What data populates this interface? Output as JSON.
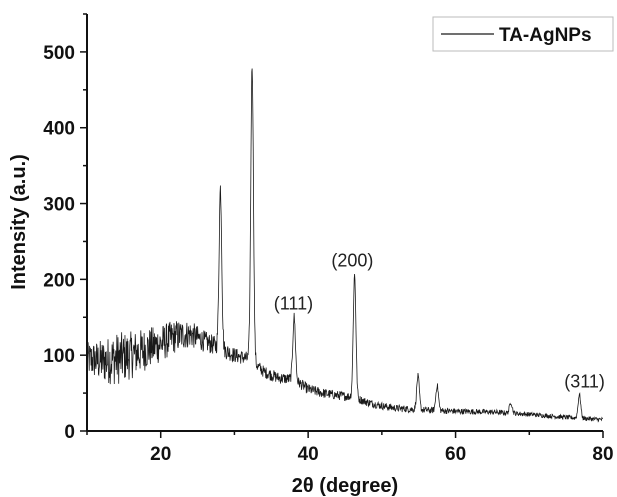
{
  "chart_data": {
    "type": "line",
    "xlabel": "2θ (degree)",
    "ylabel": "Intensity (a.u.)",
    "xlim": [
      10,
      80
    ],
    "ylim": [
      0,
      550
    ],
    "xticks": [
      20,
      40,
      60,
      80
    ],
    "yticks": [
      0,
      100,
      200,
      300,
      400,
      500
    ],
    "grid": false,
    "legend_position": "top-right",
    "series": [
      {
        "name": "TA-AgNPs",
        "color": "#1a1a1a",
        "noise_amplitude": [
          [
            10,
            22
          ],
          [
            14,
            35
          ],
          [
            18,
            28
          ],
          [
            22,
            22
          ],
          [
            26,
            14
          ],
          [
            30,
            10
          ],
          [
            34,
            8
          ],
          [
            40,
            7
          ],
          [
            45,
            6
          ],
          [
            50,
            5
          ],
          [
            60,
            4
          ],
          [
            70,
            3
          ],
          [
            80,
            3
          ]
        ],
        "baseline": [
          [
            10,
            95
          ],
          [
            12,
            92
          ],
          [
            14,
            95
          ],
          [
            16,
            100
          ],
          [
            18,
            108
          ],
          [
            20,
            115
          ],
          [
            22,
            125
          ],
          [
            24,
            128
          ],
          [
            26,
            118
          ],
          [
            28,
            110
          ],
          [
            30,
            100
          ],
          [
            32,
            95
          ],
          [
            34,
            78
          ],
          [
            36,
            70
          ],
          [
            38,
            68
          ],
          [
            39,
            62
          ],
          [
            40,
            55
          ],
          [
            42,
            50
          ],
          [
            44,
            47
          ],
          [
            46,
            45
          ],
          [
            48,
            38
          ],
          [
            50,
            33
          ],
          [
            52,
            30
          ],
          [
            55,
            28
          ],
          [
            60,
            26
          ],
          [
            65,
            25
          ],
          [
            70,
            22
          ],
          [
            75,
            18
          ],
          [
            80,
            15
          ]
        ],
        "peaks": [
          {
            "x": 28.1,
            "y": 320
          },
          {
            "x": 32.4,
            "y": 482
          },
          {
            "x": 38.1,
            "y": 150
          },
          {
            "x": 46.3,
            "y": 206
          },
          {
            "x": 54.9,
            "y": 72
          },
          {
            "x": 57.5,
            "y": 60
          },
          {
            "x": 67.5,
            "y": 38
          },
          {
            "x": 76.8,
            "y": 48
          }
        ]
      }
    ],
    "annotations": [
      {
        "text": "(111)",
        "x": 38.0,
        "y": 155
      },
      {
        "text": "(200)",
        "x": 46.0,
        "y": 212
      },
      {
        "text": "(311)",
        "x": 77.5,
        "y": 52
      }
    ]
  }
}
